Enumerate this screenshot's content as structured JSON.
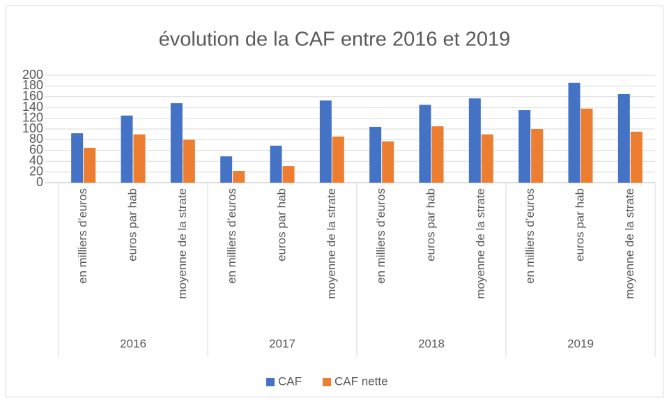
{
  "chart_data": {
    "type": "bar",
    "title": "évolution de la CAF entre 2016 et 2019",
    "groups": [
      "2016",
      "2017",
      "2018",
      "2019"
    ],
    "categories": [
      "en milliers d’euros",
      "euros par hab",
      "moyenne de la strate",
      "en milliers d’euros",
      "euros par hab",
      "moyenne de la strate",
      "en milliers d’euros",
      "euros par hab",
      "moyenne de la strate",
      "en milliers d’euros",
      "euros par hab",
      "moyenne de la strate"
    ],
    "series": [
      {
        "name": "CAF",
        "color": "#4472c4",
        "values": [
          92,
          125,
          148,
          49,
          69,
          153,
          104,
          145,
          157,
          135,
          186,
          165
        ]
      },
      {
        "name": "CAF nette",
        "color": "#ed7d31",
        "values": [
          65,
          90,
          80,
          22,
          31,
          86,
          77,
          105,
          90,
          100,
          138,
          95
        ]
      }
    ],
    "ylim": [
      0,
      200
    ],
    "yticks": [
      0,
      20,
      40,
      60,
      80,
      100,
      120,
      140,
      160,
      180,
      200
    ],
    "grid": true,
    "legend": "bottom"
  }
}
